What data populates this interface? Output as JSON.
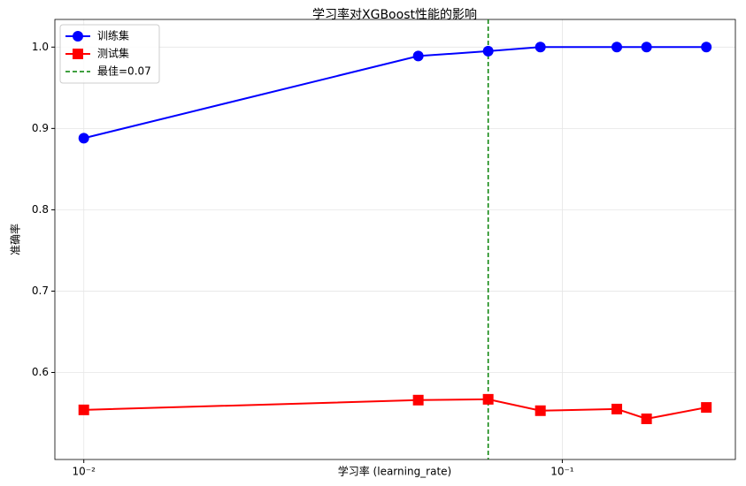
{
  "chart_data": {
    "type": "line",
    "title": "学习率对XGBoost性能的影响",
    "xlabel": "学习率 (learning_rate)",
    "ylabel": "准确率",
    "x": [
      0.01,
      0.05,
      0.07,
      0.09,
      0.13,
      0.15,
      0.2
    ],
    "series": [
      {
        "name": "训练集",
        "color": "#0000ff",
        "marker": "circle",
        "values": [
          0.888,
          0.989,
          0.995,
          1.0,
          1.0,
          1.0,
          1.0
        ]
      },
      {
        "name": "测试集",
        "color": "#ff0000",
        "marker": "square",
        "values": [
          0.554,
          0.566,
          0.567,
          0.553,
          0.555,
          0.543,
          0.557
        ]
      }
    ],
    "best": {
      "name": "最佳=0.07",
      "value": 0.07,
      "color": "#008000"
    },
    "xscale": "log",
    "xlim": [
      0.0087,
      0.23
    ],
    "xticks": [
      {
        "value": 0.01,
        "label": "10⁻²"
      },
      {
        "value": 0.1,
        "label": "10⁻¹"
      }
    ],
    "ylim": [
      0.493,
      1.034
    ],
    "yticks": [
      0.6,
      0.7,
      0.8,
      0.9,
      {
        "value": 1.0,
        "label": "1.0"
      }
    ],
    "grid": true,
    "legend": "upper left"
  }
}
